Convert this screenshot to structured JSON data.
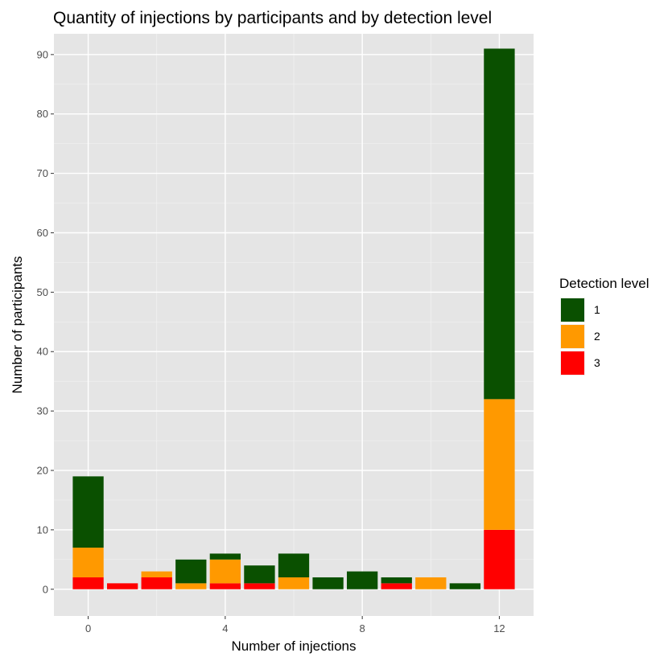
{
  "chart_data": {
    "type": "bar",
    "stacked": true,
    "title": "Quantity of injections by participants and by detection level",
    "xlabel": "Number of injections",
    "ylabel": "Number of participants",
    "x": [
      0,
      1,
      2,
      3,
      4,
      5,
      6,
      7,
      8,
      9,
      10,
      11,
      12
    ],
    "xticks": [
      0,
      4,
      8,
      12
    ],
    "xlim": [
      -1,
      13
    ],
    "ylim": [
      -4.5,
      93.5
    ],
    "yticks": [
      0,
      10,
      20,
      30,
      40,
      50,
      60,
      70,
      80,
      90
    ],
    "grid": true,
    "legend": {
      "title": "Detection level",
      "position": "right"
    },
    "series": [
      {
        "name": "3",
        "color": "#ff0000",
        "values": [
          2,
          1,
          2,
          0,
          1,
          1,
          0,
          0,
          0,
          1,
          0,
          0,
          10
        ]
      },
      {
        "name": "2",
        "color": "#ff9900",
        "values": [
          5,
          0,
          1,
          1,
          4,
          0,
          2,
          0,
          0,
          0,
          2,
          0,
          22
        ]
      },
      {
        "name": "1",
        "color": "#0a5000",
        "values": [
          12,
          0,
          0,
          4,
          1,
          3,
          4,
          2,
          3,
          1,
          0,
          1,
          59
        ]
      }
    ]
  }
}
